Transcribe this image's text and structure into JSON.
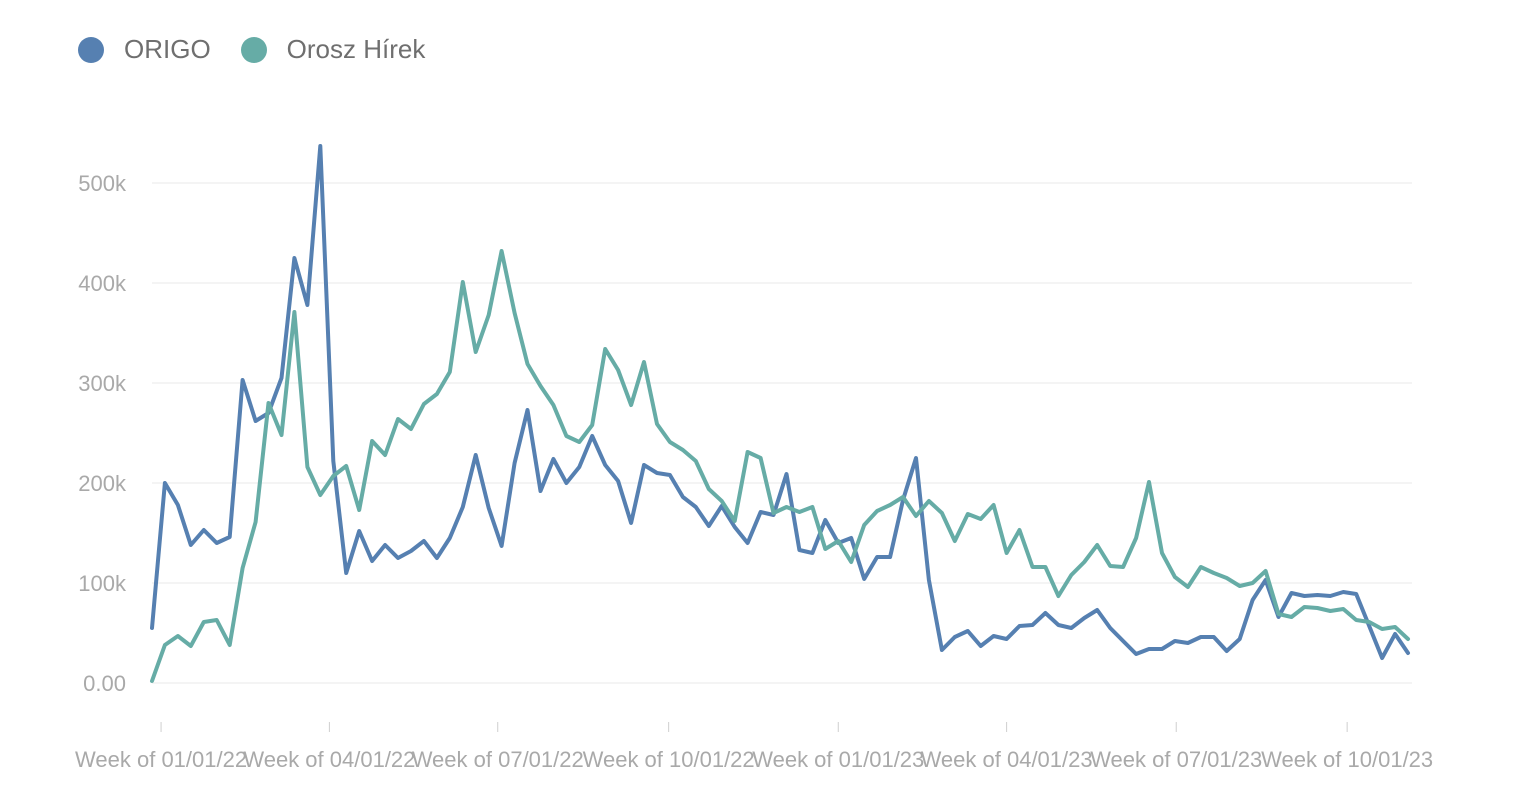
{
  "chart_data": {
    "type": "line",
    "title": "",
    "xlabel": "",
    "ylabel": "",
    "ylim": [
      0,
      550000
    ],
    "grid": true,
    "legend_position": "top-left",
    "y_ticks": [
      {
        "value": 0,
        "label": "0.00"
      },
      {
        "value": 100000,
        "label": "100k"
      },
      {
        "value": 200000,
        "label": "200k"
      },
      {
        "value": 300000,
        "label": "300k"
      },
      {
        "value": 400000,
        "label": "400k"
      },
      {
        "value": 500000,
        "label": "500k"
      }
    ],
    "x_ticks": [
      {
        "index": 0.7,
        "label": "Week of 01/01/22"
      },
      {
        "index": 13.7,
        "label": "Week of 04/01/22"
      },
      {
        "index": 26.7,
        "label": "Week of 07/01/22"
      },
      {
        "index": 39.9,
        "label": "Week of 10/01/22"
      },
      {
        "index": 53.0,
        "label": "Week of 01/01/23"
      },
      {
        "index": 66.0,
        "label": "Week of 04/01/23"
      },
      {
        "index": 79.1,
        "label": "Week of 07/01/23"
      },
      {
        "index": 92.3,
        "label": "Week of 10/01/23"
      }
    ],
    "series": [
      {
        "name": "ORIGO",
        "color": "#5680b1",
        "values": [
          55000,
          200000,
          178000,
          138000,
          153000,
          140000,
          146000,
          303000,
          262000,
          270000,
          305000,
          425000,
          378000,
          537000,
          222000,
          110000,
          152000,
          122000,
          138000,
          125000,
          132000,
          142000,
          125000,
          145000,
          176000,
          228000,
          175000,
          137000,
          220000,
          273000,
          192000,
          224000,
          200000,
          216000,
          247000,
          218000,
          202000,
          160000,
          218000,
          210000,
          208000,
          186000,
          176000,
          157000,
          177000,
          156000,
          140000,
          171000,
          168000,
          209000,
          133000,
          130000,
          163000,
          140000,
          145000,
          104000,
          126000,
          126000,
          183000,
          225000,
          103000,
          33000,
          46000,
          52000,
          37000,
          47000,
          44000,
          57000,
          58000,
          70000,
          58000,
          55000,
          65000,
          73000,
          55000,
          42000,
          29000,
          34000,
          34000,
          42000,
          40000,
          46000,
          46000,
          32000,
          44000,
          83000,
          103000,
          66000,
          90000,
          87000,
          88000,
          87000,
          91000,
          89000,
          57000,
          25000,
          49000,
          30000
        ]
      },
      {
        "name": "Orosz Hírek",
        "color": "#66aca6",
        "values": [
          2000,
          38000,
          47000,
          37000,
          61000,
          63000,
          38000,
          115000,
          161000,
          280000,
          248000,
          371000,
          216000,
          188000,
          207000,
          217000,
          173000,
          242000,
          228000,
          264000,
          254000,
          279000,
          289000,
          311000,
          401000,
          331000,
          368000,
          432000,
          370000,
          319000,
          297000,
          278000,
          247000,
          241000,
          258000,
          334000,
          313000,
          278000,
          321000,
          259000,
          241000,
          233000,
          222000,
          194000,
          182000,
          162000,
          231000,
          225000,
          170000,
          176000,
          171000,
          176000,
          134000,
          142000,
          121000,
          158000,
          172000,
          178000,
          186000,
          167000,
          182000,
          170000,
          142000,
          169000,
          164000,
          178000,
          130000,
          153000,
          116000,
          116000,
          87000,
          108000,
          121000,
          138000,
          117000,
          116000,
          145000,
          201000,
          130000,
          106000,
          96000,
          116000,
          110000,
          105000,
          97000,
          100000,
          112000,
          69000,
          66000,
          76000,
          75000,
          72000,
          74000,
          63000,
          61000,
          54000,
          56000,
          44000
        ]
      }
    ]
  }
}
